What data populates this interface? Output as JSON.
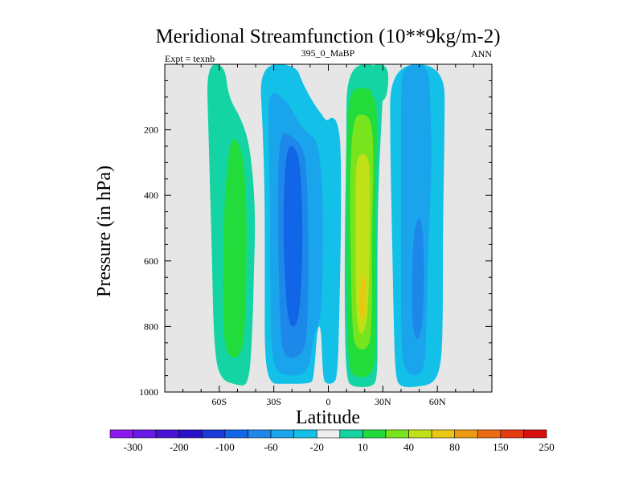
{
  "chart_data": {
    "type": "heatmap",
    "title": "Meridional Streamfunction (10**9kg/m-2)",
    "subtitle_left": "Expt = texnb",
    "subtitle_center": "395_0_MaBP",
    "subtitle_right": "ANN",
    "xlabel": "Latitude",
    "ylabel": "Pressure (in hPa)",
    "xlim": [
      -90,
      90
    ],
    "ylim": [
      0,
      1000
    ],
    "y_inverted": true,
    "x_ticks": [
      {
        "value": -60,
        "label": "60S"
      },
      {
        "value": -30,
        "label": "30S"
      },
      {
        "value": 0,
        "label": "0"
      },
      {
        "value": 30,
        "label": "30N"
      },
      {
        "value": 60,
        "label": "60N"
      }
    ],
    "y_ticks": [
      {
        "value": 200,
        "label": "200"
      },
      {
        "value": 400,
        "label": "400"
      },
      {
        "value": 600,
        "label": "600"
      },
      {
        "value": 800,
        "label": "800"
      },
      {
        "value": 1000,
        "label": "1000"
      }
    ],
    "background_color": "#e6e6e6",
    "colorbar": {
      "colors": [
        "#8a1aed",
        "#6a1ae8",
        "#4a12d6",
        "#2a10c8",
        "#1a3adc",
        "#1066e6",
        "#1e88ea",
        "#1aa4ec",
        "#12c0e8",
        "#eeeeee",
        "#14d4a4",
        "#22dc3c",
        "#78e41e",
        "#c0e018",
        "#e8c812",
        "#ec9a12",
        "#ec6a12",
        "#e63a12",
        "#d81010"
      ],
      "labels": [
        {
          "after_box": 1,
          "text": "-300"
        },
        {
          "after_box": 3,
          "text": "-200"
        },
        {
          "after_box": 5,
          "text": "-100"
        },
        {
          "after_box": 7,
          "text": "-60"
        },
        {
          "after_box": 9,
          "text": "-20"
        },
        {
          "after_box": 11,
          "text": "10"
        },
        {
          "after_box": 13,
          "text": "40"
        },
        {
          "after_box": 15,
          "text": "80"
        },
        {
          "after_box": 17,
          "text": "150"
        },
        {
          "after_box": 19,
          "text": "250"
        }
      ]
    },
    "regions": [
      {
        "name": "south-mid-lat-cell-outer",
        "level": "10",
        "color": "#14d4a4",
        "outline": [
          [
            -67,
            0
          ],
          [
            -57,
            0
          ],
          [
            -55,
            100
          ],
          [
            -48,
            165
          ],
          [
            -43,
            250
          ],
          [
            -40,
            450
          ],
          [
            -41,
            650
          ],
          [
            -42,
            850
          ],
          [
            -44,
            980
          ],
          [
            -50,
            980
          ],
          [
            -60,
            960
          ],
          [
            -63,
            850
          ],
          [
            -64,
            600
          ],
          [
            -65,
            400
          ],
          [
            -66,
            200
          ]
        ]
      },
      {
        "name": "south-mid-lat-cell-core",
        "level": "40",
        "color": "#22dc3c",
        "outline": [
          [
            -52,
            215
          ],
          [
            -47,
            270
          ],
          [
            -45,
            420
          ],
          [
            -45,
            650
          ],
          [
            -46,
            830
          ],
          [
            -49,
            895
          ],
          [
            -55,
            895
          ],
          [
            -58,
            820
          ],
          [
            -58,
            600
          ],
          [
            -57,
            400
          ],
          [
            -55,
            270
          ]
        ]
      },
      {
        "name": "south-tropics-outer",
        "level": "-20",
        "color": "#12c0e8",
        "outline": [
          [
            -38,
            0
          ],
          [
            -18,
            0
          ],
          [
            -14,
            60
          ],
          [
            -8,
            120
          ],
          [
            -4,
            150
          ],
          [
            -1,
            175
          ],
          [
            2,
            160
          ],
          [
            5,
            175
          ],
          [
            7,
            250
          ],
          [
            7,
            500
          ],
          [
            6,
            780
          ],
          [
            5,
            960
          ],
          [
            2,
            975
          ],
          [
            -1,
            975
          ],
          [
            -3,
            960
          ],
          [
            -4,
            800
          ],
          [
            -6,
            800
          ],
          [
            -8,
            960
          ],
          [
            -10,
            975
          ],
          [
            -25,
            975
          ],
          [
            -32,
            975
          ],
          [
            -35,
            900
          ],
          [
            -35,
            700
          ],
          [
            -35,
            400
          ],
          [
            -36,
            200
          ]
        ]
      },
      {
        "name": "south-tropics-mid",
        "level": "-60",
        "color": "#1aa4ec",
        "outline": [
          [
            -33,
            80
          ],
          [
            -24,
            100
          ],
          [
            -14,
            200
          ],
          [
            -8,
            220
          ],
          [
            -5,
            260
          ],
          [
            -3,
            400
          ],
          [
            -3,
            600
          ],
          [
            -4,
            780
          ],
          [
            -8,
            820
          ],
          [
            -10,
            920
          ],
          [
            -15,
            950
          ],
          [
            -23,
            950
          ],
          [
            -31,
            930
          ],
          [
            -32,
            700
          ],
          [
            -32,
            400
          ],
          [
            -33,
            200
          ]
        ]
      },
      {
        "name": "south-tropics-inner",
        "level": "-100",
        "color": "#1e88ea",
        "outline": [
          [
            -27,
            200
          ],
          [
            -20,
            220
          ],
          [
            -15,
            245
          ],
          [
            -12,
            300
          ],
          [
            -11,
            500
          ],
          [
            -11,
            700
          ],
          [
            -12,
            860
          ],
          [
            -17,
            895
          ],
          [
            -23,
            895
          ],
          [
            -26,
            860
          ],
          [
            -27,
            700
          ],
          [
            -28,
            450
          ]
        ]
      },
      {
        "name": "south-tropics-core",
        "level": "-150",
        "color": "#1066e6",
        "outline": [
          [
            -23,
            240
          ],
          [
            -17,
            260
          ],
          [
            -15,
            340
          ],
          [
            -14,
            520
          ],
          [
            -15,
            700
          ],
          [
            -17,
            800
          ],
          [
            -22,
            800
          ],
          [
            -24,
            650
          ],
          [
            -25,
            450
          ]
        ]
      },
      {
        "name": "north-tropics-outer",
        "level": "10",
        "color": "#14d4a4",
        "outline": [
          [
            10,
            0
          ],
          [
            30,
            0
          ],
          [
            30,
            100
          ],
          [
            28,
            300
          ],
          [
            27,
            500
          ],
          [
            27,
            800
          ],
          [
            27,
            960
          ],
          [
            24,
            985
          ],
          [
            13,
            985
          ],
          [
            10,
            960
          ],
          [
            9,
            800
          ],
          [
            9,
            500
          ],
          [
            10,
            250
          ]
        ]
      },
      {
        "name": "north-tropics-mid",
        "level": "40",
        "color": "#22dc3c",
        "outline": [
          [
            12,
            80
          ],
          [
            18,
            70
          ],
          [
            26,
            80
          ],
          [
            27,
            200
          ],
          [
            26,
            400
          ],
          [
            26,
            700
          ],
          [
            26,
            920
          ],
          [
            22,
            955
          ],
          [
            14,
            955
          ],
          [
            11,
            920
          ],
          [
            10,
            700
          ],
          [
            10,
            400
          ],
          [
            10,
            200
          ]
        ]
      },
      {
        "name": "north-tropics-inner",
        "level": "80",
        "color": "#78e41e",
        "outline": [
          [
            14,
            160
          ],
          [
            19,
            150
          ],
          [
            24,
            170
          ],
          [
            25,
            300
          ],
          [
            24,
            500
          ],
          [
            24,
            800
          ],
          [
            22,
            870
          ],
          [
            15,
            870
          ],
          [
            13,
            800
          ],
          [
            12,
            500
          ],
          [
            12,
            300
          ]
        ]
      },
      {
        "name": "north-tropics-core",
        "level": "100",
        "color": "#c0e018",
        "outline": [
          [
            16,
            280
          ],
          [
            20,
            270
          ],
          [
            23,
            300
          ],
          [
            23,
            500
          ],
          [
            22,
            760
          ],
          [
            19,
            830
          ],
          [
            16,
            810
          ],
          [
            15,
            680
          ],
          [
            15,
            480
          ],
          [
            15,
            340
          ]
        ]
      },
      {
        "name": "north-tropics-peak",
        "level": "150",
        "color": "#e8c812",
        "outline": [
          [
            18,
            650
          ],
          [
            20,
            640
          ],
          [
            21,
            700
          ],
          [
            20,
            780
          ],
          [
            18,
            790
          ],
          [
            17,
            730
          ]
        ]
      },
      {
        "name": "north-mid-lat-outer",
        "level": "-20",
        "color": "#12c0e8",
        "outline": [
          [
            34,
            0
          ],
          [
            64,
            0
          ],
          [
            64,
            200
          ],
          [
            63,
            500
          ],
          [
            63,
            800
          ],
          [
            62,
            920
          ],
          [
            58,
            975
          ],
          [
            48,
            985
          ],
          [
            40,
            985
          ],
          [
            37,
            960
          ],
          [
            36,
            800
          ],
          [
            35,
            500
          ],
          [
            34,
            250
          ]
        ]
      },
      {
        "name": "north-mid-lat-mid",
        "level": "-60",
        "color": "#1aa4ec",
        "outline": [
          [
            41,
            0
          ],
          [
            55,
            0
          ],
          [
            56,
            100
          ],
          [
            57,
            300
          ],
          [
            55,
            550
          ],
          [
            54,
            800
          ],
          [
            53,
            930
          ],
          [
            48,
            955
          ],
          [
            41,
            930
          ],
          [
            40,
            800
          ],
          [
            40,
            500
          ],
          [
            40,
            250
          ],
          [
            40,
            100
          ]
        ]
      },
      {
        "name": "north-mid-lat-core",
        "level": "-100",
        "color": "#1e88ea",
        "outline": [
          [
            47,
            500
          ],
          [
            51,
            450
          ],
          [
            53,
            600
          ],
          [
            52,
            800
          ],
          [
            49,
            850
          ],
          [
            46,
            800
          ],
          [
            46,
            650
          ]
        ]
      },
      {
        "name": "north-polar-strip",
        "level": "10",
        "color": "#14d4a4",
        "outline": [
          [
            22,
            0
          ],
          [
            33,
            0
          ],
          [
            33,
            80
          ],
          [
            30,
            120
          ],
          [
            24,
            110
          ]
        ]
      }
    ]
  }
}
